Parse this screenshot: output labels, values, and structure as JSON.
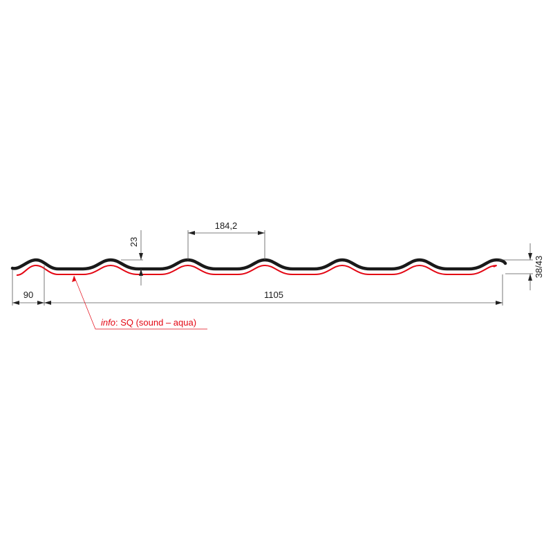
{
  "dimensions": {
    "left_overlap": "90",
    "total_width": "1105",
    "pitch": "184,2",
    "rib_height": "23",
    "total_height": "38/43"
  },
  "annotation": {
    "prefix": "info",
    "text": ": SQ (sound – aqua)"
  },
  "colors": {
    "profile": "#1a1a1a",
    "coating": "#e30613",
    "dimension_lines": "#555555"
  }
}
